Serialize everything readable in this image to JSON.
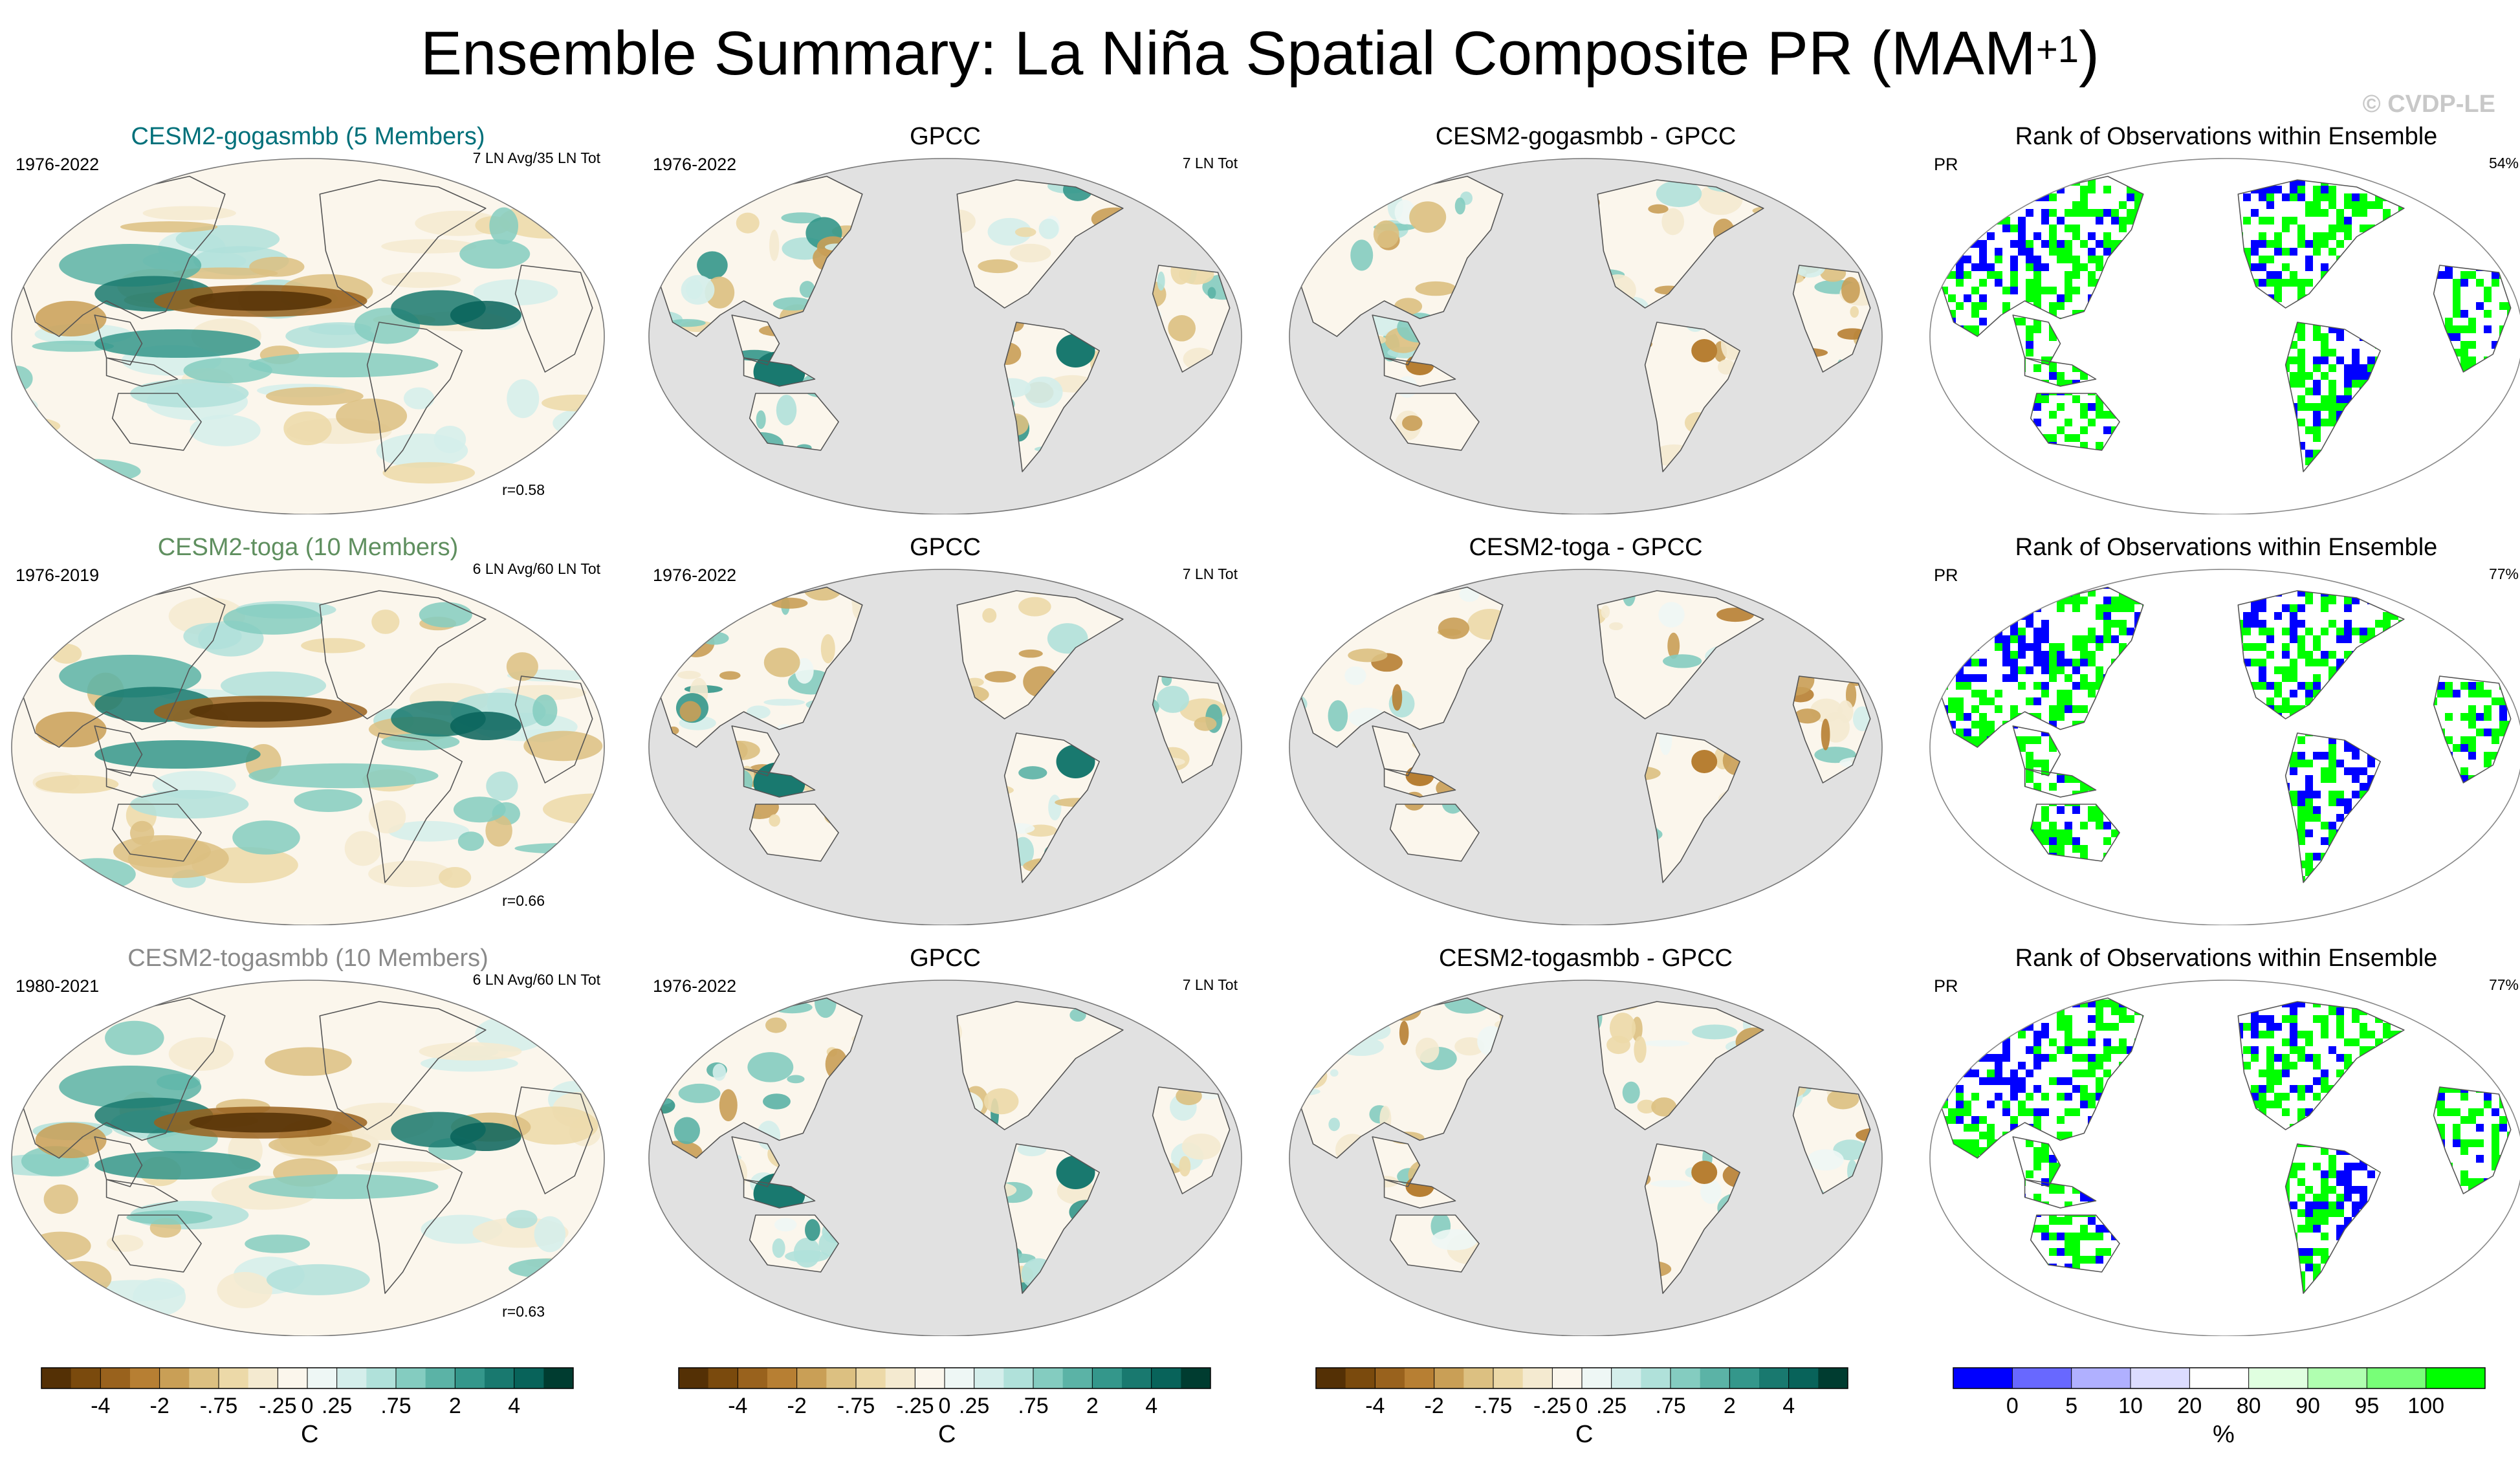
{
  "title": {
    "main": "Ensemble Summary: La Niña Spatial Composite PR (MAM",
    "sup": "+1",
    "close": ")"
  },
  "watermark": "© CVDP-LE",
  "colors": {
    "brbg": [
      "#543005",
      "#7a4a0d",
      "#99621d",
      "#b77f33",
      "#c99f56",
      "#dcc081",
      "#ecd9a8",
      "#f4ead0",
      "#fbf6ec",
      "#eef7f5",
      "#d4eeeb",
      "#b0e1da",
      "#84ccc0",
      "#5bb3a6",
      "#34978b",
      "#19796f",
      "#08635a",
      "#003c30"
    ],
    "rank": [
      "#0000ff",
      "#6868ff",
      "#b0b0ff",
      "#dcdcff",
      "#ffffff",
      "#e0ffe0",
      "#b0ffb0",
      "#78ff78",
      "#00ff00"
    ],
    "model_title_colors": [
      "#00707a",
      "#5f8f5f",
      "#8a8a8a"
    ],
    "ocean": "#e1e1e1"
  },
  "chart_data": {
    "type": "heatmap",
    "rows": [
      {
        "model": {
          "title": "CESM2-gogasmbb (5 Members)",
          "period": "1976-2022",
          "count": "7 LN Avg/35 LN Tot",
          "r": "r=0.58"
        },
        "obs": {
          "title": "GPCC",
          "period": "1976-2022",
          "count": "7 LN Tot"
        },
        "diff": {
          "title": "CESM2-gogasmbb - GPCC"
        },
        "rank": {
          "title": "Rank of Observations within Ensemble",
          "var": "PR",
          "pct": "54%"
        }
      },
      {
        "model": {
          "title": "CESM2-toga (10 Members)",
          "period": "1976-2019",
          "count": "6 LN Avg/60 LN Tot",
          "r": "r=0.66"
        },
        "obs": {
          "title": "GPCC",
          "period": "1976-2022",
          "count": "7 LN Tot"
        },
        "diff": {
          "title": "CESM2-toga - GPCC"
        },
        "rank": {
          "title": "Rank of Observations within Ensemble",
          "var": "PR",
          "pct": "77%"
        }
      },
      {
        "model": {
          "title": "CESM2-togasmbb (10 Members)",
          "period": "1980-2021",
          "count": "6 LN Avg/60 LN Tot",
          "r": "r=0.63"
        },
        "obs": {
          "title": "GPCC",
          "period": "1976-2022",
          "count": "7 LN Tot"
        },
        "diff": {
          "title": "CESM2-togasmbb - GPCC"
        },
        "rank": {
          "title": "Rank of Observations within Ensemble",
          "var": "PR",
          "pct": "77%"
        }
      }
    ],
    "colorbars": [
      {
        "labels": [
          "-4",
          "-2",
          "-.75",
          "-.25",
          "0",
          ".25",
          ".75",
          "2",
          "4"
        ],
        "unit": "C"
      },
      {
        "labels": [
          "-4",
          "-2",
          "-.75",
          "-.25",
          "0",
          ".25",
          ".75",
          "2",
          "4"
        ],
        "unit": "C"
      },
      {
        "labels": [
          "-4",
          "-2",
          "-.75",
          "-.25",
          "0",
          ".25",
          ".75",
          "2",
          "4"
        ],
        "unit": "C"
      },
      {
        "labels": [
          "0",
          "5",
          "10",
          "20",
          "80",
          "90",
          "95",
          "100"
        ],
        "unit": "%"
      }
    ]
  }
}
